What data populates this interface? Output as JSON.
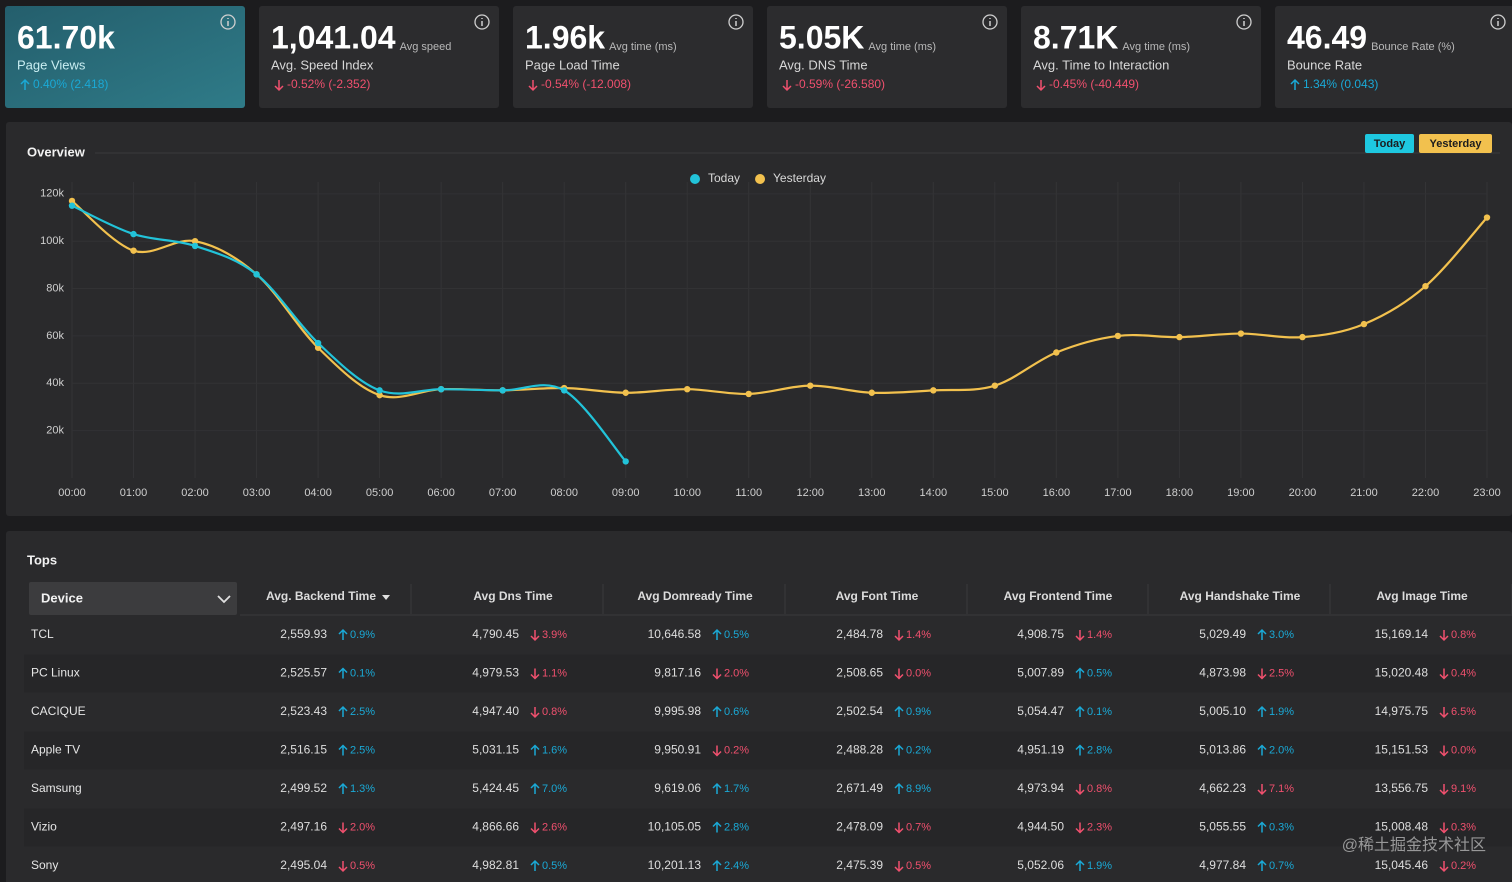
{
  "kpis": [
    {
      "value": "61.70k",
      "label": "Page Views",
      "change": "0.40% (2.418)",
      "direction": "up"
    },
    {
      "value": "1,041.04",
      "unit": "Avg speed",
      "label": "Avg. Speed Index",
      "change": "-0.52% (-2.352)",
      "direction": "down"
    },
    {
      "value": "1.96k",
      "unit": "Avg time (ms)",
      "label": "Page Load Time",
      "change": "-0.54% (-12.008)",
      "direction": "down"
    },
    {
      "value": "5.05K",
      "unit": "Avg time (ms)",
      "label": "Avg. DNS Time",
      "change": "-0.59% (-26.580)",
      "direction": "down"
    },
    {
      "value": "8.71K",
      "unit": "Avg time (ms)",
      "label": "Avg. Time to Interaction",
      "change": "-0.45% (-40.449)",
      "direction": "down"
    },
    {
      "value": "46.49",
      "unit": "Bounce Rate (%)",
      "label": "Bounce Rate",
      "change": "1.34% (0.043)",
      "direction": "up"
    }
  ],
  "overview": {
    "title": "Overview",
    "toggles": [
      "Today",
      "Yesterday"
    ]
  },
  "chart_data": {
    "type": "line",
    "categories": [
      "00:00",
      "01:00",
      "02:00",
      "03:00",
      "04:00",
      "05:00",
      "06:00",
      "07:00",
      "08:00",
      "09:00",
      "10:00",
      "11:00",
      "12:00",
      "13:00",
      "14:00",
      "15:00",
      "16:00",
      "17:00",
      "18:00",
      "19:00",
      "20:00",
      "21:00",
      "22:00",
      "23:00"
    ],
    "series": [
      {
        "name": "Today",
        "color": "#22c3d9",
        "values": [
          115000,
          103000,
          98000,
          86000,
          57000,
          37000,
          37500,
          37000,
          37000,
          7000,
          null,
          null,
          null,
          null,
          null,
          null,
          null,
          null,
          null,
          null,
          null,
          null,
          null,
          null
        ]
      },
      {
        "name": "Yesterday",
        "color": "#f2c14e",
        "values": [
          117000,
          96000,
          100000,
          86000,
          55000,
          35000,
          37500,
          37000,
          38000,
          36000,
          37500,
          35500,
          39000,
          36000,
          37000,
          39000,
          53000,
          60000,
          59500,
          61000,
          59500,
          65000,
          81000,
          110000
        ]
      }
    ],
    "ylim": [
      0,
      125000
    ],
    "yticks": [
      {
        "value": 20000,
        "label": "20k"
      },
      {
        "value": 40000,
        "label": "40k"
      },
      {
        "value": 60000,
        "label": "60k"
      },
      {
        "value": 80000,
        "label": "80k"
      },
      {
        "value": 100000,
        "label": "100k"
      },
      {
        "value": 120000,
        "label": "120k"
      }
    ],
    "grid": true
  },
  "tops": {
    "title": "Tops",
    "device_label": "Device",
    "columns": [
      "Avg. Backend Time",
      "Avg Dns Time",
      "Avg Domready Time",
      "Avg Font Time",
      "Avg Frontend Time",
      "Avg Handshake Time",
      "Avg Image Time"
    ],
    "rows": [
      {
        "device": "TCL",
        "cells": [
          {
            "value": "2,559.93",
            "change": "0.9%",
            "direction": "up"
          },
          {
            "value": "4,790.45",
            "change": "3.9%",
            "direction": "down"
          },
          {
            "value": "10,646.58",
            "change": "0.5%",
            "direction": "up"
          },
          {
            "value": "2,484.78",
            "change": "1.4%",
            "direction": "down"
          },
          {
            "value": "4,908.75",
            "change": "1.4%",
            "direction": "down"
          },
          {
            "value": "5,029.49",
            "change": "3.0%",
            "direction": "up"
          },
          {
            "value": "15,169.14",
            "change": "0.8%",
            "direction": "down"
          }
        ]
      },
      {
        "device": "PC Linux",
        "cells": [
          {
            "value": "2,525.57",
            "change": "0.1%",
            "direction": "up"
          },
          {
            "value": "4,979.53",
            "change": "1.1%",
            "direction": "down"
          },
          {
            "value": "9,817.16",
            "change": "2.0%",
            "direction": "down"
          },
          {
            "value": "2,508.65",
            "change": "0.0%",
            "direction": "down"
          },
          {
            "value": "5,007.89",
            "change": "0.5%",
            "direction": "up"
          },
          {
            "value": "4,873.98",
            "change": "2.5%",
            "direction": "down"
          },
          {
            "value": "15,020.48",
            "change": "0.4%",
            "direction": "down"
          }
        ]
      },
      {
        "device": "CACIQUE",
        "cells": [
          {
            "value": "2,523.43",
            "change": "2.5%",
            "direction": "up"
          },
          {
            "value": "4,947.40",
            "change": "0.8%",
            "direction": "down"
          },
          {
            "value": "9,995.98",
            "change": "0.6%",
            "direction": "up"
          },
          {
            "value": "2,502.54",
            "change": "0.9%",
            "direction": "up"
          },
          {
            "value": "5,054.47",
            "change": "0.1%",
            "direction": "up"
          },
          {
            "value": "5,005.10",
            "change": "1.9%",
            "direction": "up"
          },
          {
            "value": "14,975.75",
            "change": "6.5%",
            "direction": "down"
          }
        ]
      },
      {
        "device": "Apple TV",
        "cells": [
          {
            "value": "2,516.15",
            "change": "2.5%",
            "direction": "up"
          },
          {
            "value": "5,031.15",
            "change": "1.6%",
            "direction": "up"
          },
          {
            "value": "9,950.91",
            "change": "0.2%",
            "direction": "down"
          },
          {
            "value": "2,488.28",
            "change": "0.2%",
            "direction": "up"
          },
          {
            "value": "4,951.19",
            "change": "2.8%",
            "direction": "up"
          },
          {
            "value": "5,013.86",
            "change": "2.0%",
            "direction": "up"
          },
          {
            "value": "15,151.53",
            "change": "0.0%",
            "direction": "down"
          }
        ]
      },
      {
        "device": "Samsung",
        "cells": [
          {
            "value": "2,499.52",
            "change": "1.3%",
            "direction": "up"
          },
          {
            "value": "5,424.45",
            "change": "7.0%",
            "direction": "up"
          },
          {
            "value": "9,619.06",
            "change": "1.7%",
            "direction": "up"
          },
          {
            "value": "2,671.49",
            "change": "8.9%",
            "direction": "up"
          },
          {
            "value": "4,973.94",
            "change": "0.8%",
            "direction": "down"
          },
          {
            "value": "4,662.23",
            "change": "7.1%",
            "direction": "down"
          },
          {
            "value": "13,556.75",
            "change": "9.1%",
            "direction": "down"
          }
        ]
      },
      {
        "device": "Vizio",
        "cells": [
          {
            "value": "2,497.16",
            "change": "2.0%",
            "direction": "down"
          },
          {
            "value": "4,866.66",
            "change": "2.6%",
            "direction": "down"
          },
          {
            "value": "10,105.05",
            "change": "2.8%",
            "direction": "up"
          },
          {
            "value": "2,478.09",
            "change": "0.7%",
            "direction": "down"
          },
          {
            "value": "4,944.50",
            "change": "2.3%",
            "direction": "down"
          },
          {
            "value": "5,055.55",
            "change": "0.3%",
            "direction": "up"
          },
          {
            "value": "15,008.48",
            "change": "0.3%",
            "direction": "down"
          }
        ]
      },
      {
        "device": "Sony",
        "cells": [
          {
            "value": "2,495.04",
            "change": "0.5%",
            "direction": "down"
          },
          {
            "value": "4,982.81",
            "change": "0.5%",
            "direction": "up"
          },
          {
            "value": "10,201.13",
            "change": "2.4%",
            "direction": "up"
          },
          {
            "value": "2,475.39",
            "change": "0.5%",
            "direction": "down"
          },
          {
            "value": "5,052.06",
            "change": "1.9%",
            "direction": "up"
          },
          {
            "value": "4,977.84",
            "change": "0.7%",
            "direction": "up"
          },
          {
            "value": "15,045.46",
            "change": "0.2%",
            "direction": "down"
          }
        ]
      }
    ]
  },
  "watermark": "@稀土掘金技术社区"
}
